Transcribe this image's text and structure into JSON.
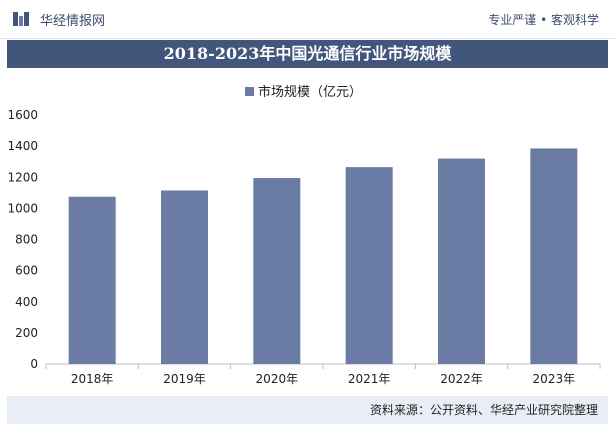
{
  "header": {
    "brand": "华经情报网",
    "tagline": "专业严谨 • 客观科学"
  },
  "title": "2018-2023年中国光通信行业市场规模",
  "source": "资料来源：公开资料、华经产业研究院整理",
  "colors": {
    "bar": "#6a7ca3",
    "title_band": "#42557a",
    "source_band": "#e9eef6"
  },
  "chart_data": {
    "type": "bar",
    "categories": [
      "2018年",
      "2019年",
      "2020年",
      "2021年",
      "2022年",
      "2023年"
    ],
    "series": [
      {
        "name": "市场规模（亿元）",
        "values": [
          1075,
          1115,
          1195,
          1265,
          1320,
          1385
        ]
      }
    ],
    "yticks": [
      0,
      200,
      400,
      600,
      800,
      1000,
      1200,
      1400,
      1600
    ],
    "ylim": [
      0,
      1600
    ],
    "legend": "top-center",
    "grid": false
  }
}
